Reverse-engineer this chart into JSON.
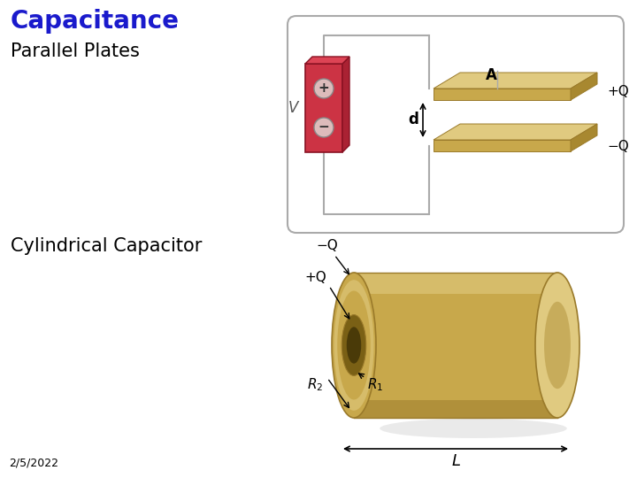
{
  "title": "Capacitance",
  "title_color": "#1A1ACC",
  "title_fontsize": 20,
  "bg_color": "#FFFFFF",
  "label_parallel": "Parallel Plates",
  "label_cylindrical": "Cylindrical Capacitor",
  "label_fontsize": 15,
  "label_color": "#000000",
  "date_text": "2/5/2022",
  "date_fontsize": 9,
  "battery_color": "#CC3344",
  "battery_light": "#E8A0A8",
  "wire_color": "#AAAAAA",
  "gold_main": "#C8A84B",
  "gold_dark": "#9A7A2A",
  "gold_light": "#E0CA80",
  "gold_mid": "#B09038",
  "gold_side": "#A88830"
}
